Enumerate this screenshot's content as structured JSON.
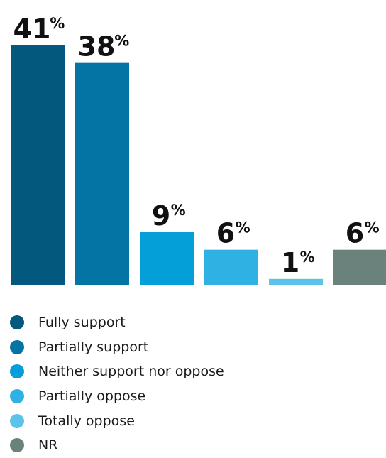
{
  "chart_data": {
    "type": "bar",
    "categories": [
      "Fully support",
      "Partially support",
      "Neither support nor oppose",
      "Partially oppose",
      "Totally oppose",
      "NR"
    ],
    "values": [
      41,
      38,
      9,
      6,
      1,
      6
    ],
    "value_labels": [
      "41",
      "38",
      "9",
      "6",
      "1",
      "6"
    ],
    "unit": "%",
    "colors": [
      "#03587e",
      "#0474a4",
      "#049ed8",
      "#2fb1e3",
      "#5bc3ea",
      "#6b817c"
    ],
    "title": "",
    "xlabel": "",
    "ylabel": "",
    "ylim": [
      0,
      41
    ],
    "grid": false,
    "legend_position": "bottom-left"
  }
}
